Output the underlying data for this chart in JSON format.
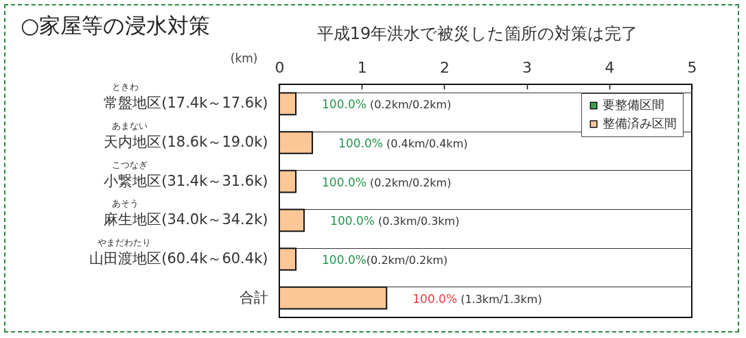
{
  "chart_data": {
    "type": "bar",
    "orientation": "horizontal",
    "title": "○家屋等の浸水対策",
    "subtitle": "平成19年洪水で被災した箇所の対策は完了",
    "xlabel": "(km)",
    "categories": [
      "常盤地区(17.4k～17.6k)",
      "天内地区(18.6k～19.0k)",
      "小繋地区(31.4k～31.6k)",
      "麻生地区(34.0k～34.2k)",
      "山田渡地区(60.4k～60.4k)",
      "合計"
    ],
    "series": [
      {
        "name": "要整備区間",
        "color": "#3d9e4a",
        "values": [
          null,
          null,
          null,
          null,
          null,
          null
        ]
      },
      {
        "name": "整備済み区間",
        "color": "#fbc797",
        "values": [
          0.2,
          0.4,
          0.2,
          0.3,
          0.2,
          1.3
        ],
        "value_labels": [
          "100.0% (0.2km/0.2km)",
          "100.0% (0.4km/0.4km)",
          "100.0% (0.2km/0.2km)",
          "100.0% (0.3km/0.3km)",
          "100.0%(0.2km/0.2km)",
          "100.0% (1.3km/1.3km)"
        ]
      }
    ],
    "xlim": [
      0,
      5
    ],
    "xticks": [
      0,
      1,
      2,
      3,
      4,
      5
    ],
    "grid": "y",
    "legend": "top right",
    "annotations": [
      "ときわ",
      "あまない",
      "こつなぎ",
      "あそう",
      "やまだわたり"
    ]
  }
}
